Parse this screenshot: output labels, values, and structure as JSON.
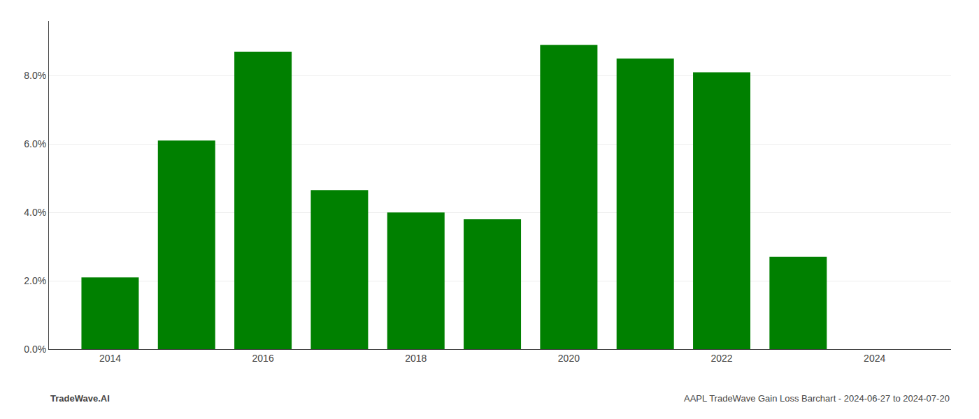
{
  "chart_data": {
    "type": "bar",
    "x": [
      2014,
      2015,
      2016,
      2017,
      2018,
      2019,
      2020,
      2021,
      2022,
      2023
    ],
    "values": [
      0.021,
      0.061,
      0.087,
      0.0465,
      0.04,
      0.038,
      0.089,
      0.085,
      0.081,
      0.027
    ],
    "color": "#008000",
    "xlim": [
      2013.2,
      2025.0
    ],
    "xticks": [
      2014,
      2016,
      2018,
      2020,
      2022,
      2024
    ],
    "ylim": [
      0,
      0.096
    ],
    "yticks": [
      {
        "value": 0.0,
        "label": "0.0%"
      },
      {
        "value": 0.02,
        "label": "2.0%"
      },
      {
        "value": 0.04,
        "label": "4.0%"
      },
      {
        "value": 0.06,
        "label": "6.0%"
      },
      {
        "value": 0.08,
        "label": "8.0%"
      }
    ],
    "grid": true,
    "annotations": [
      "TradeWave.AI",
      "AAPL TradeWave Gain Loss Barchart - 2024-06-27 to 2024-07-20"
    ]
  }
}
